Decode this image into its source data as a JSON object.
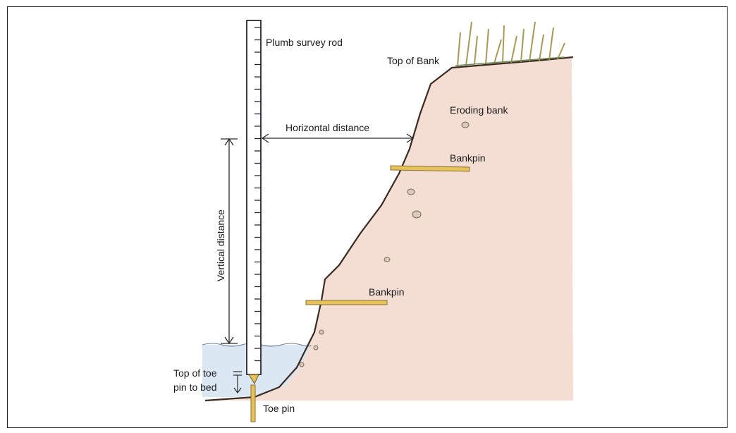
{
  "labels": {
    "rod": "Plumb survey rod",
    "top_of_bank": "Top of Bank",
    "eroding_bank": "Eroding bank",
    "horizontal": "Horizontal distance",
    "bankpin_upper": "Bankpin",
    "bankpin_lower": "Bankpin",
    "vertical": "Vertical distance",
    "toe_top_line1": "Top of toe",
    "toe_top_line2": "pin to bed",
    "toe_pin": "Toe pin"
  },
  "colors": {
    "soil": "#f4ddd2",
    "water": "#d7e6f3",
    "pin": "#e5c25a",
    "grass": "#b9a86a"
  }
}
